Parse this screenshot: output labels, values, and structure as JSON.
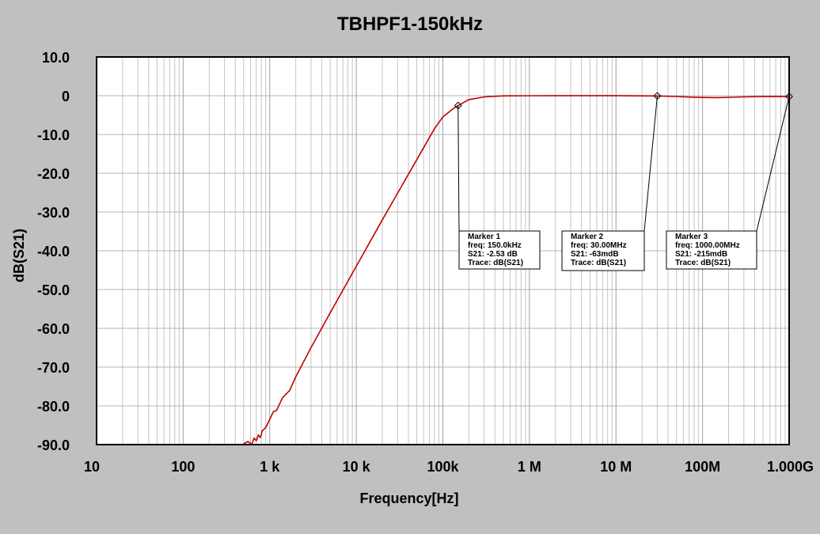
{
  "chart_data": {
    "type": "line",
    "title": "TBHPF1-150kHz",
    "xlabel": "Frequency[Hz]",
    "ylabel": "dB(S21)",
    "x_scale": "log",
    "xlim": [
      10,
      1000000000
    ],
    "ylim": [
      -90,
      10
    ],
    "grid": true,
    "y_ticks": [
      {
        "value": 10,
        "label": "10.0"
      },
      {
        "value": 0,
        "label": "0"
      },
      {
        "value": -10,
        "label": "-10.0"
      },
      {
        "value": -20,
        "label": "-20.0"
      },
      {
        "value": -30,
        "label": "-30.0"
      },
      {
        "value": -40,
        "label": "-40.0"
      },
      {
        "value": -50,
        "label": "-50.0"
      },
      {
        "value": -60,
        "label": "-60.0"
      },
      {
        "value": -70,
        "label": "-70.0"
      },
      {
        "value": -80,
        "label": "-80.0"
      },
      {
        "value": -90,
        "label": "-90.0"
      }
    ],
    "x_ticks": [
      {
        "value": 10,
        "label": "10"
      },
      {
        "value": 100,
        "label": "100"
      },
      {
        "value": 1000,
        "label": "1  k"
      },
      {
        "value": 10000,
        "label": "10 k"
      },
      {
        "value": 100000,
        "label": "100k"
      },
      {
        "value": 1000000,
        "label": "1  M"
      },
      {
        "value": 10000000,
        "label": "10 M"
      },
      {
        "value": 100000000,
        "label": "100M"
      },
      {
        "value": 1000000000,
        "label": "1.000G"
      }
    ],
    "series": [
      {
        "name": "",
        "color": "#c00000",
        "x": [
          500,
          560,
          620,
          660,
          700,
          740,
          780,
          820,
          860,
          900,
          1000,
          1100,
          1200,
          1400,
          1700,
          2000,
          3000,
          5000,
          10000,
          20000,
          50000,
          80000,
          100000,
          130000,
          150000,
          200000,
          300000,
          500000,
          1000000,
          3000000,
          10000000,
          30000000,
          50000000,
          70000000,
          100000000,
          150000000,
          200000000,
          300000000,
          500000000,
          1000000000
        ],
        "y": [
          -89.8,
          -89.2,
          -90.0,
          -88.3,
          -89.0,
          -87.5,
          -88.2,
          -86.5,
          -86.0,
          -85.6,
          -83.5,
          -81.5,
          -81.2,
          -78.0,
          -76.0,
          -72.5,
          -65.0,
          -56.0,
          -44.0,
          -32.0,
          -16.5,
          -8.5,
          -5.5,
          -3.4,
          -2.53,
          -1.0,
          -0.3,
          -0.05,
          0.0,
          0.02,
          0.02,
          -0.063,
          -0.2,
          -0.35,
          -0.45,
          -0.5,
          -0.4,
          -0.3,
          -0.2,
          -0.215
        ]
      }
    ],
    "markers": [
      {
        "x": 150000,
        "y": -2.53,
        "lines": [
          "Marker 1",
          "freq: 150.0kHz",
          "S21: -2.53 dB",
          "Trace: dB(S21)"
        ]
      },
      {
        "x": 30000000,
        "y": -0.063,
        "lines": [
          "Marker 2",
          "freq: 30.00MHz",
          "S21: -63mdB",
          "Trace: dB(S21)"
        ]
      },
      {
        "x": 1000000000,
        "y": -0.215,
        "lines": [
          "Marker 3",
          "freq: 1000.00MHz",
          "S21: -215mdB",
          "Trace: dB(S21)"
        ]
      }
    ]
  }
}
